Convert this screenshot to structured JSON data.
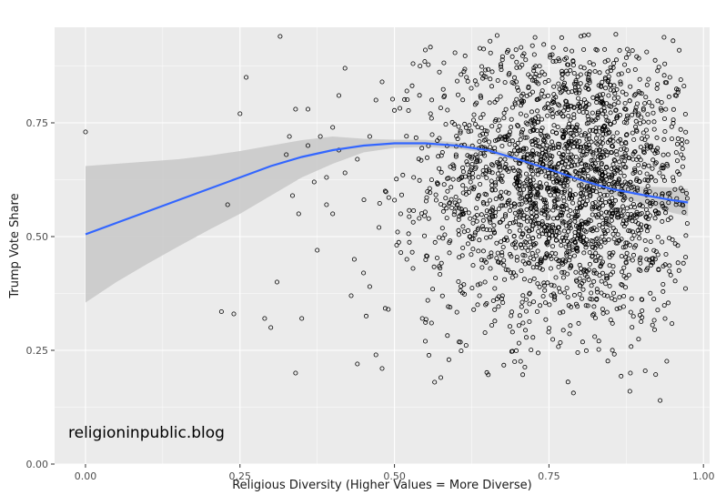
{
  "chart_data": {
    "type": "scatter",
    "title": "",
    "xlabel": "Religious Diversity (Higher Values = More Diverse)",
    "ylabel": "Trump Vote Share",
    "xlim": [
      -0.05,
      1.01
    ],
    "ylim": [
      0.0,
      0.96
    ],
    "x_ticks": [
      0.0,
      0.25,
      0.5,
      0.75,
      1.0
    ],
    "x_tick_labels": [
      "0.00",
      "0.25",
      "0.50",
      "0.75",
      "1.00"
    ],
    "y_ticks": [
      0.0,
      0.25,
      0.5,
      0.75
    ],
    "y_tick_labels": [
      "0.00",
      "0.25",
      "0.50",
      "0.75"
    ],
    "grid": true,
    "legend": "none",
    "annotation": "religioninpublic.blog",
    "colors": {
      "panel": "#ebebeb",
      "grid": "#ffffff",
      "points": "#000000",
      "smooth_line": "#3366ff",
      "ribbon": "#c8c8c8"
    },
    "sparse_points": [
      [
        0.0,
        0.73
      ],
      [
        0.22,
        0.335
      ],
      [
        0.23,
        0.57
      ],
      [
        0.24,
        0.33
      ],
      [
        0.25,
        0.77
      ],
      [
        0.26,
        0.85
      ],
      [
        0.29,
        0.32
      ],
      [
        0.3,
        0.3
      ],
      [
        0.31,
        0.4
      ],
      [
        0.315,
        0.94
      ],
      [
        0.325,
        0.68
      ],
      [
        0.33,
        0.72
      ],
      [
        0.335,
        0.59
      ],
      [
        0.34,
        0.2
      ],
      [
        0.345,
        0.55
      ],
      [
        0.35,
        0.32
      ],
      [
        0.36,
        0.78
      ],
      [
        0.37,
        0.62
      ],
      [
        0.375,
        0.47
      ],
      [
        0.38,
        0.72
      ],
      [
        0.39,
        0.63
      ],
      [
        0.4,
        0.55
      ],
      [
        0.41,
        0.81
      ],
      [
        0.42,
        0.64
      ],
      [
        0.43,
        0.37
      ],
      [
        0.435,
        0.45
      ],
      [
        0.44,
        0.22
      ],
      [
        0.45,
        0.42
      ],
      [
        0.46,
        0.39
      ],
      [
        0.47,
        0.24
      ],
      [
        0.475,
        0.52
      ],
      [
        0.48,
        0.21
      ],
      [
        0.485,
        0.6
      ],
      [
        0.49,
        0.34
      ],
      [
        0.5,
        0.58
      ],
      [
        0.505,
        0.51
      ],
      [
        0.51,
        0.55
      ],
      [
        0.52,
        0.45
      ],
      [
        0.53,
        0.43
      ],
      [
        0.54,
        0.54
      ],
      [
        0.545,
        0.32
      ],
      [
        0.55,
        0.27
      ],
      [
        0.56,
        0.31
      ],
      [
        0.565,
        0.18
      ],
      [
        0.575,
        0.19
      ],
      [
        0.34,
        0.78
      ],
      [
        0.36,
        0.7
      ],
      [
        0.39,
        0.57
      ],
      [
        0.41,
        0.69
      ],
      [
        0.44,
        0.67
      ],
      [
        0.46,
        0.72
      ],
      [
        0.47,
        0.8
      ],
      [
        0.48,
        0.84
      ],
      [
        0.52,
        0.82
      ],
      [
        0.53,
        0.88
      ],
      [
        0.55,
        0.91
      ],
      [
        0.56,
        0.76
      ],
      [
        0.42,
        0.87
      ],
      [
        0.4,
        0.74
      ]
    ],
    "dense_cloud": {
      "n_points": 2300,
      "x_mean": 0.78,
      "x_sd": 0.11,
      "x_range": [
        0.45,
        0.975
      ],
      "y_mean": 0.62,
      "y_sd": 0.16,
      "y_range": [
        0.04,
        0.95
      ]
    },
    "smooth_line": {
      "x": [
        0.0,
        0.05,
        0.1,
        0.15,
        0.2,
        0.25,
        0.3,
        0.35,
        0.4,
        0.45,
        0.5,
        0.55,
        0.6,
        0.65,
        0.7,
        0.75,
        0.8,
        0.85,
        0.9,
        0.95,
        0.975
      ],
      "y": [
        0.505,
        0.53,
        0.555,
        0.58,
        0.605,
        0.63,
        0.655,
        0.675,
        0.69,
        0.7,
        0.705,
        0.705,
        0.7,
        0.69,
        0.67,
        0.648,
        0.625,
        0.605,
        0.592,
        0.58,
        0.575
      ],
      "lower": [
        0.355,
        0.4,
        0.44,
        0.478,
        0.515,
        0.55,
        0.59,
        0.63,
        0.66,
        0.685,
        0.695,
        0.697,
        0.693,
        0.684,
        0.664,
        0.64,
        0.615,
        0.592,
        0.574,
        0.552,
        0.545
      ],
      "upper": [
        0.655,
        0.66,
        0.665,
        0.67,
        0.678,
        0.688,
        0.7,
        0.712,
        0.72,
        0.715,
        0.713,
        0.713,
        0.707,
        0.697,
        0.677,
        0.656,
        0.635,
        0.618,
        0.61,
        0.608,
        0.605
      ]
    }
  }
}
